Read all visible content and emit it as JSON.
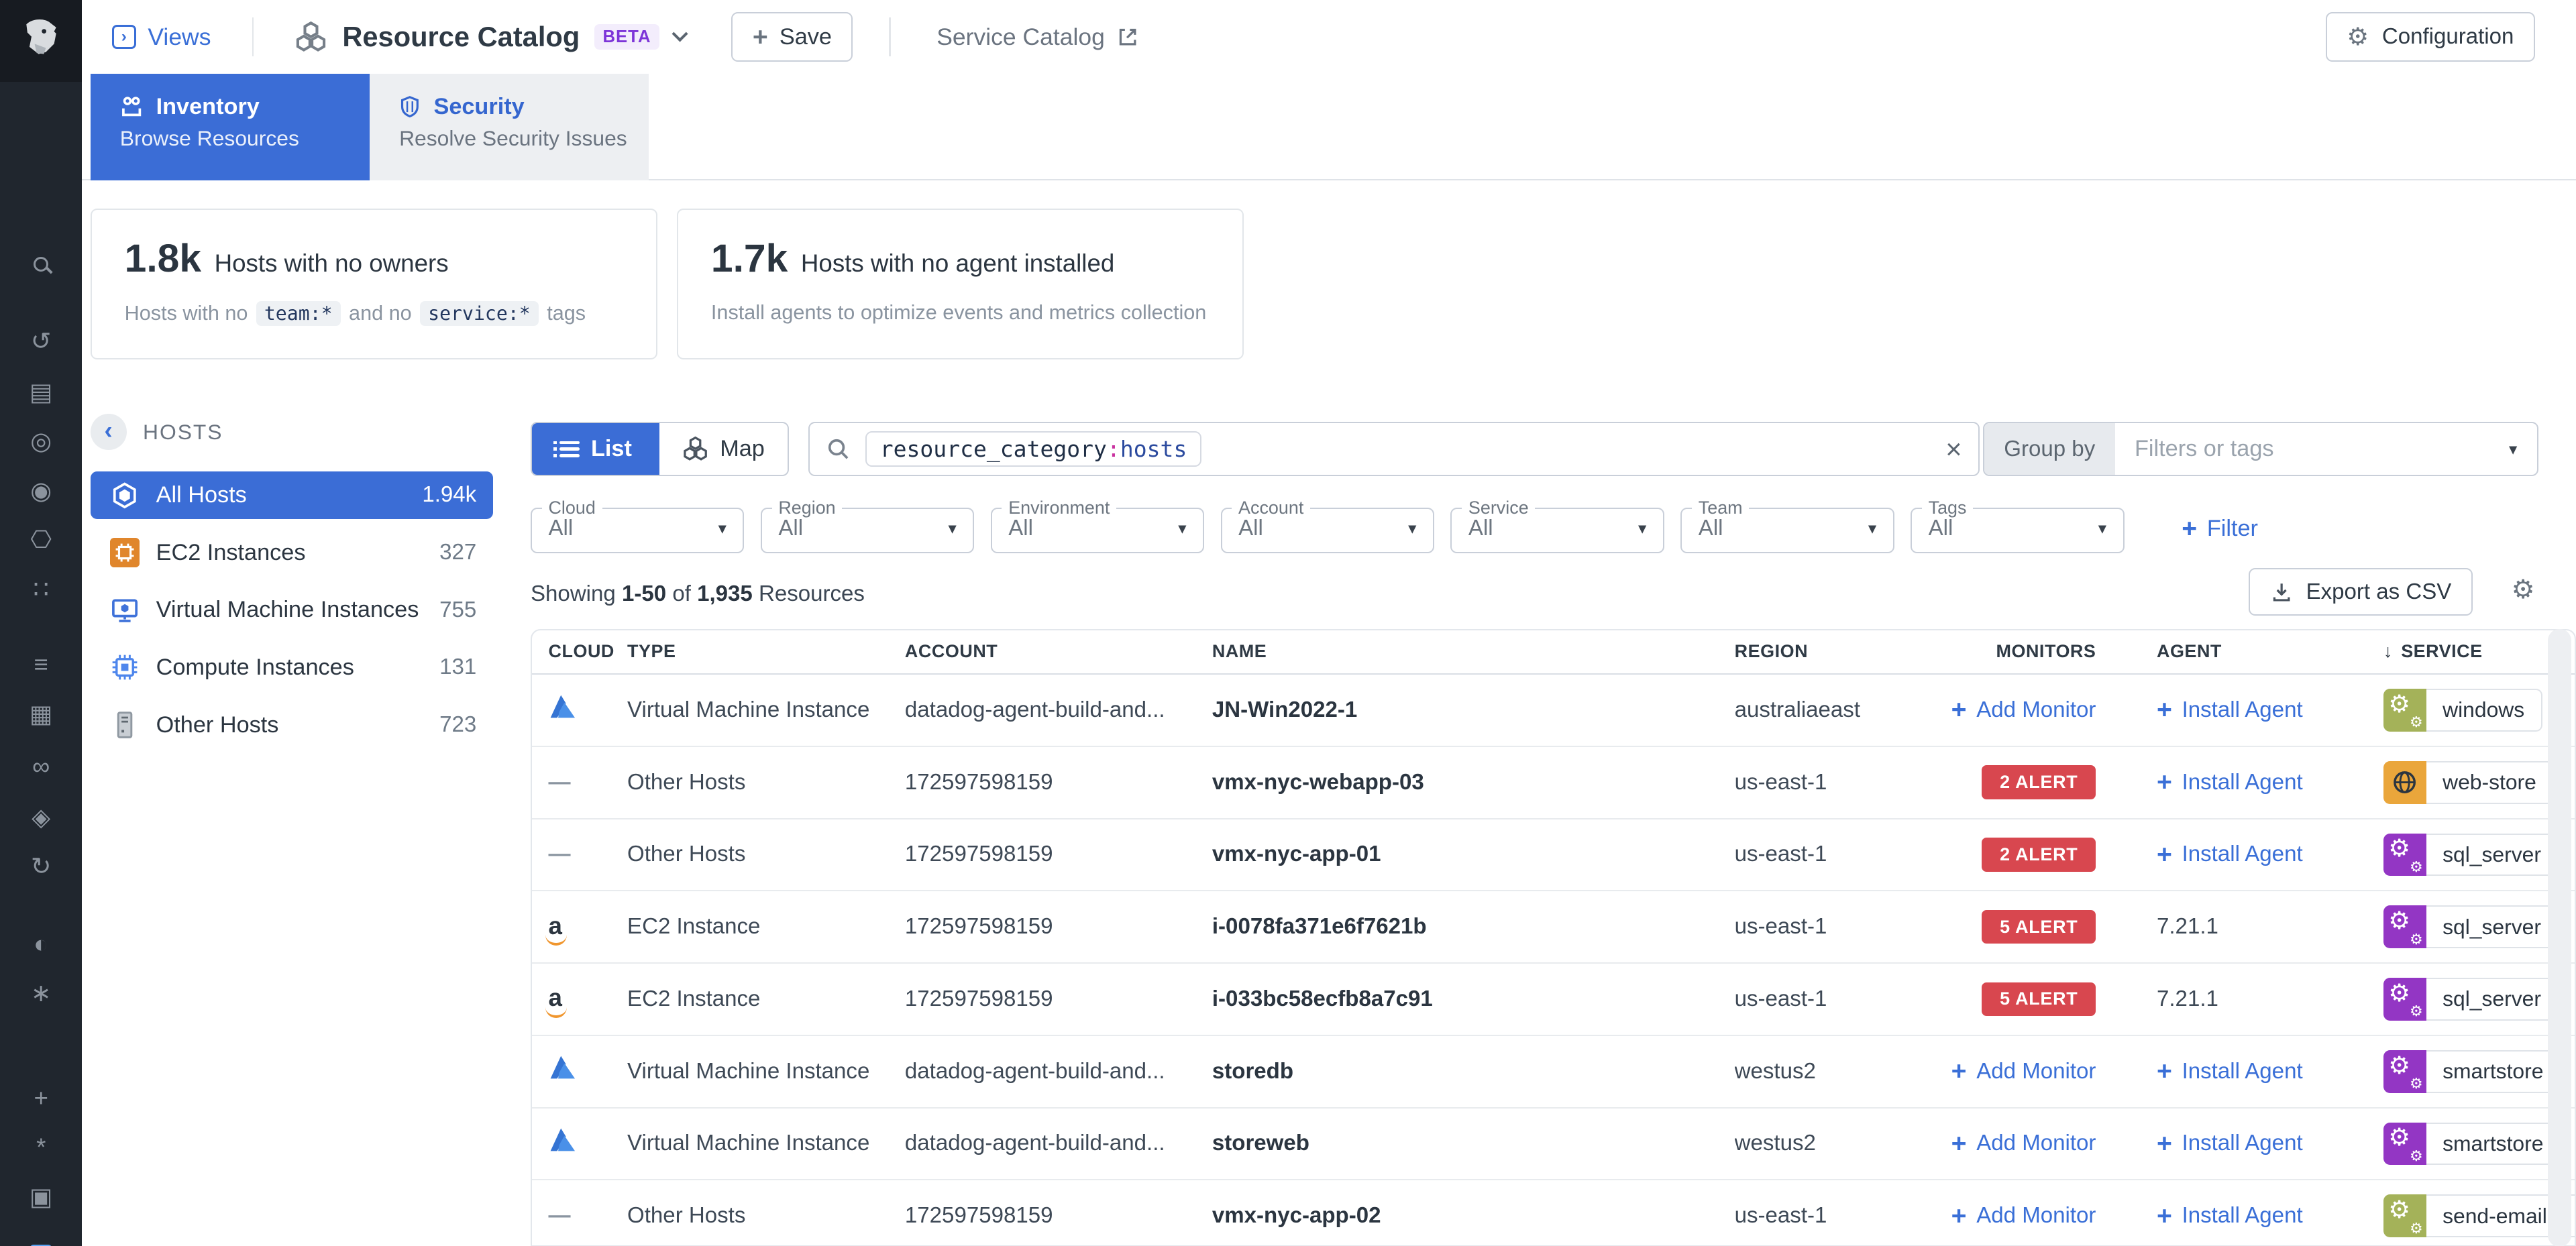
{
  "theme": {
    "blue": "#3b6dd6",
    "link": "#3a6fd7",
    "red": "#d8474f",
    "purple": "#9336c4",
    "olive": "#a4b259",
    "amber": "#eaa63b",
    "beta_purple": "#7d35d8",
    "token_colon": "#c9319f",
    "rail_bg": "#20262e"
  },
  "rail": {
    "icons": [
      {
        "name": "search-icon",
        "glyph": "",
        "gap": 101
      },
      {
        "name": "history-icon",
        "glyph": "↺",
        "gap": 27
      },
      {
        "name": "metrics-icon",
        "glyph": "▤",
        "gap": 11
      },
      {
        "name": "monitors-icon",
        "glyph": "◎",
        "gap": 10
      },
      {
        "name": "watchdog-icon",
        "glyph": "◉",
        "gap": 10
      },
      {
        "name": "infrastructure-icon",
        "glyph": "⎔",
        "gap": 10
      },
      {
        "name": "usm-icon",
        "glyph": "∷",
        "gap": 10
      },
      {
        "name": "logs-icon",
        "glyph": "≡",
        "gap": 26
      },
      {
        "name": "ci-icon",
        "glyph": "▦",
        "gap": 10
      },
      {
        "name": "apm-icon",
        "glyph": "∞",
        "gap": 12
      },
      {
        "name": "security-icon",
        "glyph": "◈",
        "gap": 11
      },
      {
        "name": "synthetics-icon",
        "glyph": "↻",
        "gap": 10
      },
      {
        "name": "rum-icon",
        "glyph": "◐",
        "gap": 27
      },
      {
        "name": "ai-icon",
        "glyph": "∗",
        "gap": 10
      },
      {
        "name": "integrations-icon",
        "glyph": "+",
        "gap": 44
      },
      {
        "name": "copilot-icon",
        "glyph": "*",
        "gap": 10
      },
      {
        "name": "more-icon",
        "glyph": "▣",
        "gap": 10
      },
      {
        "name": "resource-catalog-active-icon",
        "glyph": "",
        "gap": 14
      }
    ]
  },
  "header": {
    "views_label": "Views",
    "title": "Resource Catalog",
    "beta": "BETA",
    "save_label": "Save",
    "service_catalog_label": "Service Catalog",
    "configuration_label": "Configuration"
  },
  "tabs": [
    {
      "title": "Inventory",
      "subtitle": "Browse Resources"
    },
    {
      "title": "Security",
      "subtitle": "Resolve Security Issues"
    }
  ],
  "cards": [
    {
      "value": "1.8k",
      "title": "Hosts with no owners",
      "desc_prefix": "Hosts with no",
      "chip1": "team:*",
      "desc_mid": "and no",
      "chip2": "service:*",
      "desc_suffix": "tags"
    },
    {
      "value": "1.7k",
      "title": "Hosts with no agent installed",
      "description": "Install agents to optimize events and metrics collection"
    }
  ],
  "hosts_panel": {
    "back_label": "HOSTS",
    "items": [
      {
        "label": "All Hosts",
        "count": "1.94k",
        "icon": "hexagon",
        "active": true
      },
      {
        "label": "EC2 Instances",
        "count": "327",
        "icon": "aws-ec2",
        "active": false
      },
      {
        "label": "Virtual Machine Instances",
        "count": "755",
        "icon": "azure-vm",
        "active": false
      },
      {
        "label": "Compute Instances",
        "count": "131",
        "icon": "gcp-compute",
        "active": false
      },
      {
        "label": "Other Hosts",
        "count": "723",
        "icon": "server",
        "active": false
      }
    ]
  },
  "toolbar": {
    "list_label": "List",
    "map_label": "Map",
    "search_token": {
      "field": "resource_category",
      "sep": ":",
      "value": "hosts"
    },
    "group_by_label": "Group by",
    "group_by_placeholder": "Filters or tags"
  },
  "filters": [
    {
      "label": "Cloud",
      "value": "All"
    },
    {
      "label": "Region",
      "value": "All"
    },
    {
      "label": "Environment",
      "value": "All"
    },
    {
      "label": "Account",
      "value": "All"
    },
    {
      "label": "Service",
      "value": "All"
    },
    {
      "label": "Team",
      "value": "All"
    },
    {
      "label": "Tags",
      "value": "All"
    }
  ],
  "add_filter_label": "Filter",
  "results": {
    "showing": "Showing",
    "range": "1-50",
    "of": "of",
    "total": "1,935",
    "suffix": "Resources",
    "export_label": "Export as CSV"
  },
  "table": {
    "columns": [
      "CLOUD",
      "TYPE",
      "ACCOUNT",
      "NAME",
      "REGION",
      "MONITORS",
      "AGENT",
      "SERVICE"
    ],
    "sorted_column": "SERVICE",
    "links": {
      "add_monitor": "Add Monitor",
      "install_agent": "Install Agent"
    },
    "rows": [
      {
        "cloud": "azure",
        "type": "Virtual Machine Instance",
        "account": "datadog-agent-build-and...",
        "name": "JN-Win2022-1",
        "region": "australiaeast",
        "monitor": {
          "kind": "add"
        },
        "agent": {
          "kind": "install"
        },
        "service": {
          "label": "windows",
          "color": "olive",
          "icon": "gears"
        }
      },
      {
        "cloud": "none",
        "type": "Other Hosts",
        "account": "172597598159",
        "name": "vmx-nyc-webapp-03",
        "region": "us-east-1",
        "monitor": {
          "kind": "alert",
          "label": "2 ALERT"
        },
        "agent": {
          "kind": "install"
        },
        "service": {
          "label": "web-store",
          "color": "amber",
          "icon": "globe"
        }
      },
      {
        "cloud": "none",
        "type": "Other Hosts",
        "account": "172597598159",
        "name": "vmx-nyc-app-01",
        "region": "us-east-1",
        "monitor": {
          "kind": "alert",
          "label": "2 ALERT"
        },
        "agent": {
          "kind": "install"
        },
        "service": {
          "label": "sql_server",
          "color": "purple",
          "icon": "gears"
        }
      },
      {
        "cloud": "aws",
        "type": "EC2 Instance",
        "account": "172597598159",
        "name": "i-0078fa371e6f7621b",
        "region": "us-east-1",
        "monitor": {
          "kind": "alert",
          "label": "5 ALERT"
        },
        "agent": {
          "kind": "version",
          "label": "7.21.1"
        },
        "service": {
          "label": "sql_server",
          "color": "purple",
          "icon": "gears"
        }
      },
      {
        "cloud": "aws",
        "type": "EC2 Instance",
        "account": "172597598159",
        "name": "i-033bc58ecfb8a7c91",
        "region": "us-east-1",
        "monitor": {
          "kind": "alert",
          "label": "5 ALERT"
        },
        "agent": {
          "kind": "version",
          "label": "7.21.1"
        },
        "service": {
          "label": "sql_server",
          "color": "purple",
          "icon": "gears"
        }
      },
      {
        "cloud": "azure",
        "type": "Virtual Machine Instance",
        "account": "datadog-agent-build-and...",
        "name": "storedb",
        "region": "westus2",
        "monitor": {
          "kind": "add"
        },
        "agent": {
          "kind": "install"
        },
        "service": {
          "label": "smartstore",
          "color": "purple",
          "icon": "gears"
        }
      },
      {
        "cloud": "azure",
        "type": "Virtual Machine Instance",
        "account": "datadog-agent-build-and...",
        "name": "storeweb",
        "region": "westus2",
        "monitor": {
          "kind": "add"
        },
        "agent": {
          "kind": "install"
        },
        "service": {
          "label": "smartstore",
          "color": "purple",
          "icon": "gears"
        }
      },
      {
        "cloud": "none",
        "type": "Other Hosts",
        "account": "172597598159",
        "name": "vmx-nyc-app-02",
        "region": "us-east-1",
        "monitor": {
          "kind": "add"
        },
        "agent": {
          "kind": "install"
        },
        "service": {
          "label": "send-email-m",
          "color": "olive",
          "icon": "gears"
        }
      }
    ]
  }
}
